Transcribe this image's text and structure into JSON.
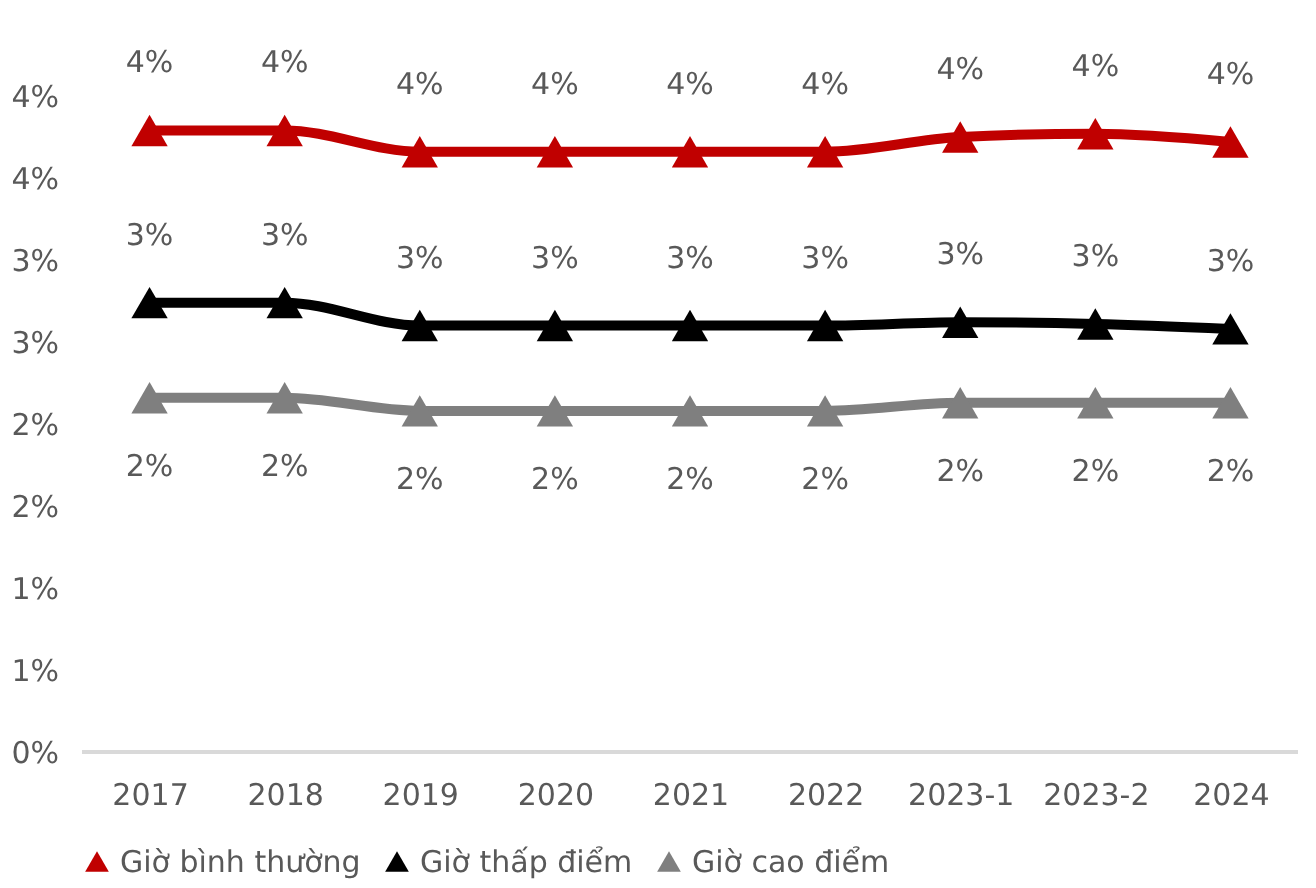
{
  "chart_data": {
    "type": "line",
    "categories": [
      "2017",
      "2018",
      "2019",
      "2020",
      "2021",
      "2022",
      "2023-1",
      "2023-2",
      "2024"
    ],
    "series": [
      {
        "name": "Giờ bình thường",
        "color": "#c00000",
        "values": [
          3.79,
          3.79,
          3.66,
          3.66,
          3.66,
          3.66,
          3.75,
          3.77,
          3.72
        ],
        "value_labels": [
          "4%",
          "4%",
          "4%",
          "4%",
          "4%",
          "4%",
          "4%",
          "4%",
          "4%"
        ]
      },
      {
        "name": "Giờ thấp điểm",
        "color": "#000000",
        "values": [
          2.74,
          2.74,
          2.6,
          2.6,
          2.6,
          2.6,
          2.62,
          2.61,
          2.58
        ],
        "value_labels": [
          "3%",
          "3%",
          "3%",
          "3%",
          "3%",
          "3%",
          "3%",
          "3%",
          "3%"
        ]
      },
      {
        "name": "Giờ cao điểm",
        "color": "#7f7f7f",
        "values": [
          2.16,
          2.16,
          2.08,
          2.08,
          2.08,
          2.08,
          2.13,
          2.13,
          2.13
        ],
        "value_labels": [
          "2%",
          "2%",
          "2%",
          "2%",
          "2%",
          "2%",
          "2%",
          "2%",
          "2%"
        ]
      }
    ],
    "ylim": [
      0,
      4
    ],
    "yticks": [
      {
        "value": 0,
        "label": "0%"
      },
      {
        "value": 0.5,
        "label": "1%"
      },
      {
        "value": 1,
        "label": "1%"
      },
      {
        "value": 1.5,
        "label": "2%"
      },
      {
        "value": 2,
        "label": "2%"
      },
      {
        "value": 2.5,
        "label": "3%"
      },
      {
        "value": 3,
        "label": "3%"
      },
      {
        "value": 3.5,
        "label": "4%"
      },
      {
        "value": 4,
        "label": "4%"
      }
    ],
    "grid": false,
    "legend": "bottom",
    "marker": "triangle",
    "line_style": "solid"
  }
}
